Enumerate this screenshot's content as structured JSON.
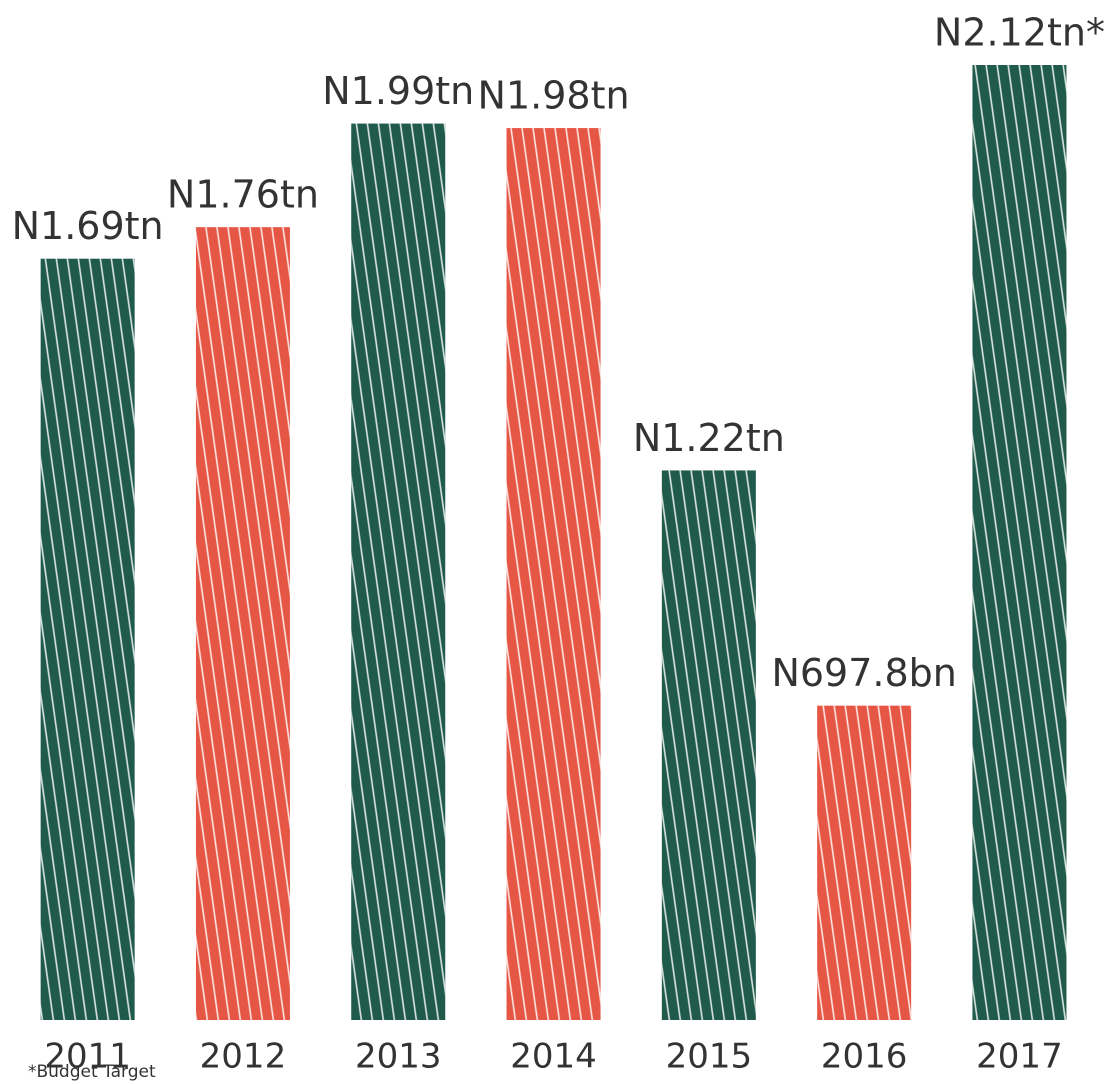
{
  "chart_data": {
    "type": "bar",
    "categories": [
      "2011",
      "2012",
      "2013",
      "2014",
      "2015",
      "2016",
      "2017"
    ],
    "values": [
      1.69,
      1.76,
      1.99,
      1.98,
      1.22,
      0.6978,
      2.12
    ],
    "value_labels": [
      "N1.69tn",
      "N1.76tn",
      "N1.99tn",
      "N1.98tn",
      "N1.22tn",
      "N697.8bn",
      "N2.12tn*"
    ],
    "colors": [
      "#1f5a4b",
      "#e65644",
      "#1f5a4b",
      "#e65644",
      "#1f5a4b",
      "#e65644",
      "#1f5a4b"
    ],
    "footnote": "*Budget Target"
  }
}
